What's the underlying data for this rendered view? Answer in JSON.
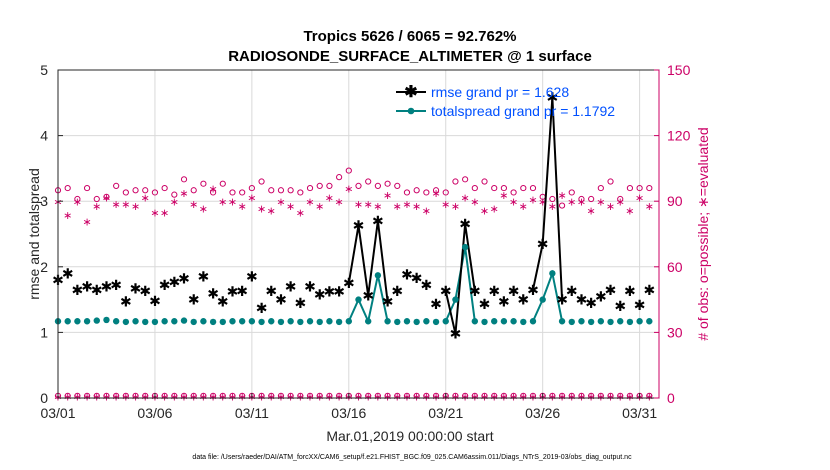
{
  "colors": {
    "rmse": "#000000",
    "spread": "#008080",
    "counts": "#cc0066",
    "legend_text": "#0050ff",
    "grid": "#d9d9d9"
  },
  "chart_data": {
    "type": "line",
    "title_line1": "Tropics 5626 / 6065 = 92.762%",
    "title_line2": "RADIOSONDE_SURFACE_ALTIMETER @ 1 surface",
    "xlabel": "Mar.01,2019 00:00:00 start",
    "ylabel": "rmse and totalspread",
    "ylabel_right": "# of obs: o=possible; ∗=evaluated",
    "footnote": "data file: /Users/raeder/DAI/ATM_forcXX/CAM6_setup/f.e21.FHIST_BGC.f09_025.CAM6assim.011/Diags_NTrS_2019-03/obs_diag_output.nc",
    "xlim": [
      1,
      32
    ],
    "ylim": [
      0,
      5
    ],
    "ylim_right": [
      0,
      150
    ],
    "xticks": [
      1,
      6,
      11,
      16,
      21,
      26,
      31
    ],
    "xtick_labels": [
      "03/01",
      "03/06",
      "03/11",
      "03/16",
      "03/21",
      "03/26",
      "03/31"
    ],
    "yticks": [
      0,
      1,
      2,
      3,
      4,
      5
    ],
    "ytick_labels": [
      "0",
      "1",
      "2",
      "3",
      "4",
      "5"
    ],
    "yticks_right": [
      0,
      30,
      60,
      90,
      120,
      150
    ],
    "ytick_labels_right": [
      "0",
      "30",
      "60",
      "90",
      "120",
      "150"
    ],
    "legend": {
      "rmse_label": "rmse grand pr = 1.628",
      "spread_label": "totalspread grand pr = 1.1792",
      "position": "top-right"
    },
    "x": [
      1.0,
      1.5,
      2.0,
      2.5,
      3.0,
      3.5,
      4.0,
      4.5,
      5.0,
      5.5,
      6.0,
      6.5,
      7.0,
      7.5,
      8.0,
      8.5,
      9.0,
      9.5,
      10.0,
      10.5,
      11.0,
      11.5,
      12.0,
      12.5,
      13.0,
      13.5,
      14.0,
      14.5,
      15.0,
      15.5,
      16.0,
      16.5,
      17.0,
      17.5,
      18.0,
      18.5,
      19.0,
      19.5,
      20.0,
      20.5,
      21.0,
      21.5,
      22.0,
      22.5,
      23.0,
      23.5,
      24.0,
      24.5,
      25.0,
      25.5,
      26.0,
      26.5,
      27.0,
      27.5,
      28.0,
      28.5,
      29.0,
      29.5,
      30.0,
      30.5,
      31.0,
      31.5
    ],
    "series": [
      {
        "name": "rmse",
        "values": [
          1.8,
          1.9,
          1.65,
          1.7,
          1.65,
          1.7,
          1.72,
          1.47,
          1.67,
          1.63,
          1.48,
          1.72,
          1.77,
          1.82,
          1.5,
          1.85,
          1.59,
          1.47,
          1.62,
          1.63,
          1.85,
          1.37,
          1.63,
          1.5,
          1.7,
          1.45,
          1.7,
          1.58,
          1.62,
          1.62,
          1.75,
          2.63,
          1.56,
          2.7,
          1.47,
          1.63,
          1.88,
          1.83,
          1.72,
          1.43,
          1.63,
          0.98,
          2.65,
          1.63,
          1.43,
          1.63,
          1.47,
          1.63,
          1.5,
          1.65,
          2.35,
          4.58,
          1.5,
          1.63,
          1.5,
          1.45,
          1.55,
          1.65,
          1.4,
          1.63,
          1.42,
          1.65
        ]
      },
      {
        "name": "totalspread",
        "values": [
          1.17,
          1.17,
          1.17,
          1.17,
          1.18,
          1.19,
          1.17,
          1.16,
          1.17,
          1.16,
          1.16,
          1.17,
          1.17,
          1.18,
          1.16,
          1.17,
          1.16,
          1.16,
          1.17,
          1.17,
          1.17,
          1.16,
          1.17,
          1.16,
          1.17,
          1.16,
          1.17,
          1.16,
          1.17,
          1.16,
          1.17,
          1.5,
          1.17,
          1.87,
          1.17,
          1.16,
          1.17,
          1.16,
          1.17,
          1.16,
          1.17,
          1.5,
          2.3,
          1.17,
          1.16,
          1.17,
          1.17,
          1.17,
          1.16,
          1.17,
          1.5,
          1.9,
          1.17,
          1.16,
          1.17,
          1.16,
          1.17,
          1.16,
          1.17,
          1.16,
          1.17,
          1.17
        ]
      },
      {
        "name": "obs_possible",
        "values": [
          95,
          96,
          91,
          96,
          91,
          92,
          97,
          94,
          95,
          95,
          94,
          96,
          93,
          100,
          95,
          98,
          94,
          98,
          94,
          94,
          96,
          99,
          95,
          95,
          95,
          94,
          96,
          97,
          97,
          101,
          104,
          97,
          99,
          97,
          98,
          97,
          94,
          95,
          94,
          95,
          94,
          99,
          100,
          96,
          99,
          96,
          96,
          94,
          96,
          96,
          92,
          91,
          88,
          94,
          91,
          91,
          96,
          99,
          91,
          96,
          96,
          96
        ]
      },
      {
        "name": "obs_evaluated",
        "values": [
          90,
          84,
          90,
          81,
          88,
          92,
          89,
          89,
          88,
          92,
          85,
          85,
          90,
          94,
          89,
          87,
          96,
          90,
          90,
          88,
          92,
          87,
          86,
          90,
          88,
          85,
          90,
          88,
          92,
          90,
          96,
          89,
          89,
          88,
          93,
          88,
          89,
          88,
          86,
          94,
          89,
          88,
          92,
          90,
          86,
          87,
          93,
          90,
          88,
          91,
          90,
          88,
          93,
          90,
          90,
          86,
          90,
          88,
          90,
          86,
          92,
          88
        ]
      },
      {
        "name": "obs_possible_bottom",
        "values": [
          1,
          1,
          1,
          1,
          1,
          1,
          1,
          1,
          1,
          1,
          1,
          1,
          1,
          1,
          1,
          1,
          1,
          1,
          1,
          1,
          1,
          1,
          1,
          1,
          1,
          1,
          1,
          1,
          1,
          1,
          1,
          1,
          1,
          1,
          1,
          1,
          1,
          1,
          1,
          1,
          1,
          1,
          1,
          1,
          1,
          1,
          1,
          1,
          1,
          1,
          1,
          1,
          1,
          1,
          1,
          1,
          1,
          1,
          1,
          1,
          1,
          1
        ]
      },
      {
        "name": "obs_evaluated_bottom",
        "values": [
          1,
          1,
          1,
          1,
          1,
          1,
          1,
          1,
          1,
          1,
          1,
          1,
          1,
          1,
          1,
          1,
          1,
          1,
          1,
          1,
          1,
          1,
          1,
          1,
          1,
          1,
          1,
          1,
          1,
          1,
          1,
          1,
          1,
          1,
          1,
          1,
          1,
          1,
          1,
          1,
          1,
          1,
          1,
          1,
          1,
          1,
          1,
          1,
          1,
          1,
          1,
          1,
          1,
          1,
          1,
          1,
          1,
          1,
          1,
          1,
          1,
          1
        ]
      }
    ]
  }
}
